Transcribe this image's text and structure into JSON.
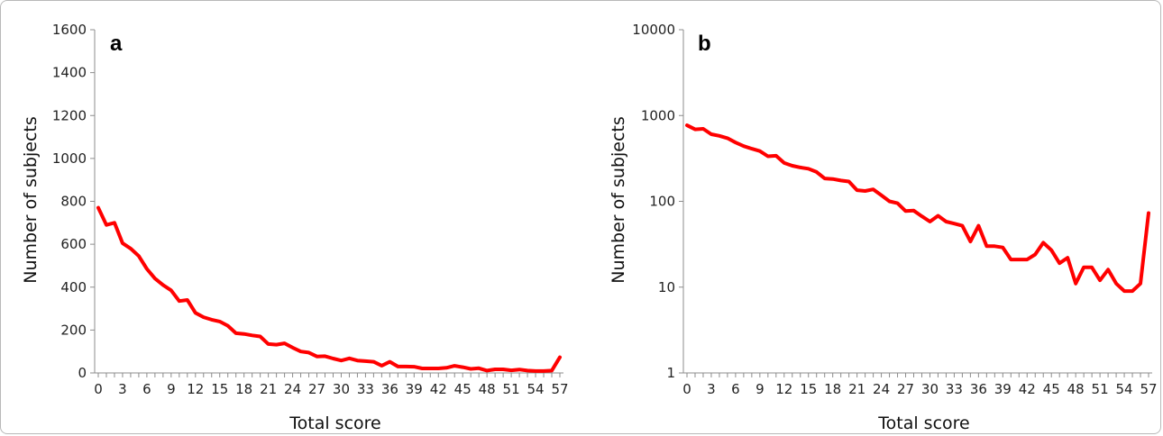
{
  "chart_data": [
    {
      "type": "line",
      "panel_label": "a",
      "xlabel": "Total score",
      "ylabel": "Number of subjects",
      "yscale": "linear",
      "xlim": [
        0,
        57
      ],
      "ylim": [
        0,
        1600
      ],
      "x_ticks": [
        0,
        3,
        6,
        9,
        12,
        15,
        18,
        21,
        24,
        27,
        30,
        33,
        36,
        39,
        42,
        45,
        48,
        51,
        54,
        57
      ],
      "y_ticks": [
        0,
        200,
        400,
        600,
        800,
        1000,
        1200,
        1400,
        1600
      ],
      "grid": false,
      "legend": "none",
      "color": "#ff0000",
      "series": [
        {
          "x": [
            0,
            1,
            2,
            3,
            4,
            5,
            6,
            7,
            8,
            9,
            10,
            11,
            12,
            13,
            14,
            15,
            16,
            17,
            18,
            19,
            20,
            21,
            22,
            23,
            24,
            25,
            26,
            27,
            28,
            29,
            30,
            31,
            32,
            33,
            34,
            35,
            36,
            37,
            38,
            39,
            40,
            41,
            42,
            43,
            44,
            45,
            46,
            47,
            48,
            49,
            50,
            51,
            52,
            53,
            54,
            55,
            56,
            57
          ],
          "values": [
            770,
            690,
            700,
            605,
            580,
            545,
            485,
            440,
            410,
            385,
            335,
            340,
            280,
            260,
            248,
            240,
            220,
            185,
            182,
            175,
            170,
            135,
            132,
            138,
            118,
            100,
            95,
            77,
            78,
            67,
            58,
            68,
            58,
            55,
            52,
            34,
            52,
            30,
            30,
            29,
            21,
            21,
            21,
            24,
            33,
            27,
            19,
            22,
            11,
            17,
            17,
            12,
            16,
            11,
            9,
            9,
            11,
            73
          ]
        }
      ]
    },
    {
      "type": "line",
      "panel_label": "b",
      "xlabel": "Total score",
      "ylabel": "Number of subjects",
      "yscale": "log",
      "xlim": [
        0,
        57
      ],
      "ylim": [
        1,
        10000
      ],
      "x_ticks": [
        0,
        3,
        6,
        9,
        12,
        15,
        18,
        21,
        24,
        27,
        30,
        33,
        36,
        39,
        42,
        45,
        48,
        51,
        54,
        57
      ],
      "y_ticks": [
        1,
        10,
        100,
        1000,
        10000
      ],
      "grid": false,
      "legend": "none",
      "color": "#ff0000",
      "series": [
        {
          "x": [
            0,
            1,
            2,
            3,
            4,
            5,
            6,
            7,
            8,
            9,
            10,
            11,
            12,
            13,
            14,
            15,
            16,
            17,
            18,
            19,
            20,
            21,
            22,
            23,
            24,
            25,
            26,
            27,
            28,
            29,
            30,
            31,
            32,
            33,
            34,
            35,
            36,
            37,
            38,
            39,
            40,
            41,
            42,
            43,
            44,
            45,
            46,
            47,
            48,
            49,
            50,
            51,
            52,
            53,
            54,
            55,
            56,
            57
          ],
          "values": [
            770,
            690,
            700,
            605,
            580,
            545,
            485,
            440,
            410,
            385,
            335,
            340,
            280,
            260,
            248,
            240,
            220,
            185,
            182,
            175,
            170,
            135,
            132,
            138,
            118,
            100,
            95,
            77,
            78,
            67,
            58,
            68,
            58,
            55,
            52,
            34,
            52,
            30,
            30,
            29,
            21,
            21,
            21,
            24,
            33,
            27,
            19,
            22,
            11,
            17,
            17,
            12,
            16,
            11,
            9,
            9,
            11,
            73
          ]
        }
      ]
    }
  ]
}
